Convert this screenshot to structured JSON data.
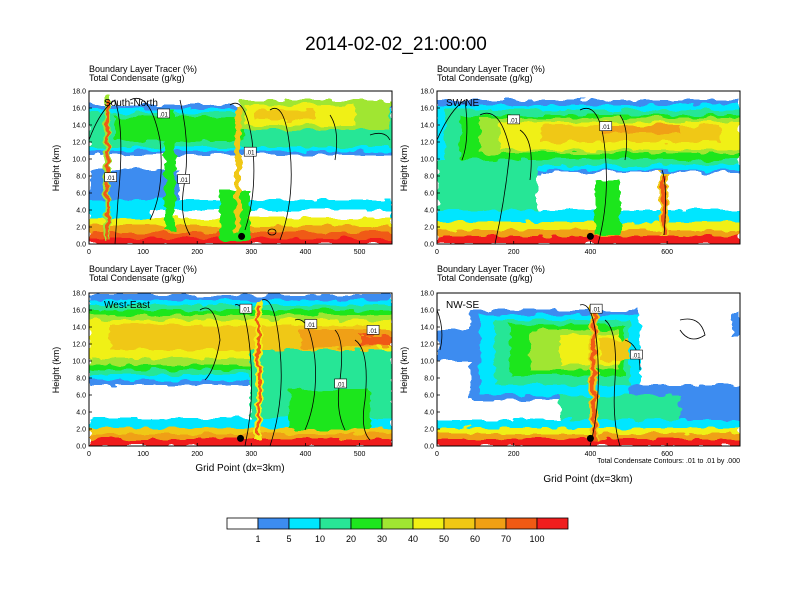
{
  "title": "2014-02-02_21:00:00",
  "colors": {
    "palette": [
      "#ffffff",
      "#3c8cf0",
      "#00e6ff",
      "#28e696",
      "#1ee61e",
      "#a0e632",
      "#f0f014",
      "#f0c814",
      "#f0a014",
      "#f05a14",
      "#f01e1e"
    ],
    "contour": "#000000"
  },
  "chart_data": [
    {
      "type": "heatmap",
      "id": "south-north",
      "header_line1": "Boundary Layer Tracer   (%)",
      "header_line2": "Total Condensate   (g/kg)",
      "label": "South-North",
      "ylabel": "Height (km)",
      "xlabel": "",
      "xlim": [
        0,
        560
      ],
      "ylim": [
        0,
        18
      ],
      "xticks": [
        0,
        100,
        200,
        300,
        400,
        500
      ],
      "yticks": [
        "0.0",
        "2.0",
        "4.0",
        "6.0",
        "8.0",
        "10.0",
        "12.0",
        "14.0",
        "16.0",
        "18.0"
      ],
      "contour_labels": [
        {
          "text": ".01",
          "x": 138,
          "y": 15.3
        },
        {
          "text": ".01",
          "x": 298,
          "y": 10.8
        },
        {
          "text": ".01",
          "x": 175,
          "y": 7.6
        },
        {
          "text": ".01",
          "x": 40,
          "y": 7.8
        }
      ],
      "marker": {
        "x": 282,
        "y": 0.9
      }
    },
    {
      "type": "heatmap",
      "id": "sw-ne",
      "header_line1": "Boundary Layer Tracer   (%)",
      "header_line2": "Total Condensate   (g/kg)",
      "label": "SW-NE",
      "ylabel": "Height (km)",
      "xlabel": "",
      "xlim": [
        0,
        790
      ],
      "ylim": [
        0,
        18
      ],
      "xticks": [
        0,
        200,
        400,
        600
      ],
      "yticks": [
        "0.0",
        "2.0",
        "4.0",
        "6.0",
        "8.0",
        "10.0",
        "12.0",
        "14.0",
        "16.0",
        "18.0"
      ],
      "contour_labels": [
        {
          "text": ".01",
          "x": 200,
          "y": 14.6
        },
        {
          "text": ".01",
          "x": 440,
          "y": 13.8
        }
      ],
      "marker": {
        "x": 400,
        "y": 0.9
      }
    },
    {
      "type": "heatmap",
      "id": "west-east",
      "header_line1": "Boundary Layer Tracer   (%)",
      "header_line2": "Total Condensate   (g/kg)",
      "label": "West-East",
      "ylabel": "Height (km)",
      "xlabel": "Grid Point (dx=3km)",
      "xlim": [
        0,
        560
      ],
      "ylim": [
        0,
        18
      ],
      "xticks": [
        0,
        100,
        200,
        300,
        400,
        500
      ],
      "yticks": [
        "0.0",
        "2.0",
        "4.0",
        "6.0",
        "8.0",
        "10.0",
        "12.0",
        "14.0",
        "16.0",
        "18.0"
      ],
      "contour_labels": [
        {
          "text": ".01",
          "x": 290,
          "y": 16.1
        },
        {
          "text": ".01",
          "x": 410,
          "y": 14.3
        },
        {
          "text": ".01",
          "x": 525,
          "y": 13.6
        },
        {
          "text": ".01",
          "x": 465,
          "y": 7.3
        }
      ],
      "marker": {
        "x": 280,
        "y": 0.9
      }
    },
    {
      "type": "heatmap",
      "id": "nw-se",
      "header_line1": "Boundary Layer Tracer   (%)",
      "header_line2": "Total Condensate   (g/kg)",
      "label": "NW-SE",
      "ylabel": "Height (km)",
      "xlabel": "Grid Point (dx=3km)",
      "footnote": "Total Condensate Contours: .01 to .01 by .000",
      "xlim": [
        0,
        790
      ],
      "ylim": [
        0,
        18
      ],
      "xticks": [
        0,
        200,
        400,
        600
      ],
      "yticks": [
        "0.0",
        "2.0",
        "4.0",
        "6.0",
        "8.0",
        "10.0",
        "12.0",
        "14.0",
        "16.0",
        "18.0"
      ],
      "contour_labels": [
        {
          "text": ".01",
          "x": 415,
          "y": 16.1
        },
        {
          "text": ".01",
          "x": 520,
          "y": 10.7
        }
      ],
      "marker": {
        "x": 400,
        "y": 0.9
      }
    }
  ],
  "colorbar": {
    "labels": [
      "1",
      "5",
      "10",
      "20",
      "30",
      "40",
      "50",
      "60",
      "70",
      "100"
    ]
  }
}
